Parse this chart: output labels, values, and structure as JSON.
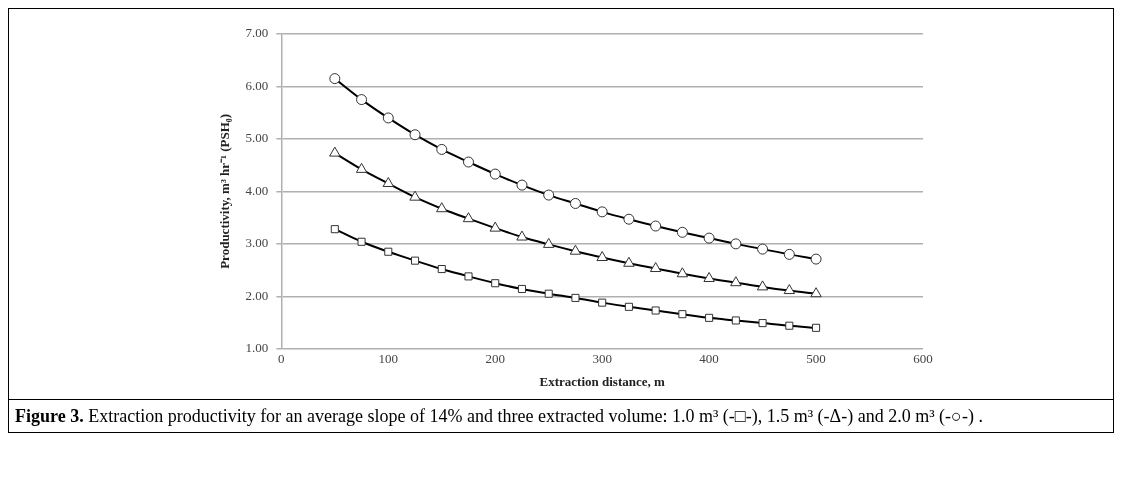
{
  "chart_data": {
    "type": "line",
    "xlabel": "Extraction distance, m",
    "ylabel": "Productivity, m³ hr⁻¹ (PSH₀)",
    "x": [
      50,
      75,
      100,
      125,
      150,
      175,
      200,
      225,
      250,
      275,
      300,
      325,
      350,
      375,
      400,
      425,
      450,
      475,
      500
    ],
    "series": [
      {
        "color": "#000000",
        "marker": "square",
        "values": [
          3.28,
          3.04,
          2.85,
          2.68,
          2.52,
          2.38,
          2.25,
          2.14,
          2.05,
          1.97,
          1.88,
          1.8,
          1.73,
          1.66,
          1.59,
          1.54,
          1.49,
          1.44,
          1.4
        ]
      },
      {
        "color": "#000000",
        "marker": "triangle",
        "values": [
          4.73,
          4.42,
          4.15,
          3.89,
          3.67,
          3.48,
          3.3,
          3.13,
          2.99,
          2.86,
          2.74,
          2.63,
          2.53,
          2.43,
          2.34,
          2.26,
          2.18,
          2.11,
          2.05
        ]
      },
      {
        "color": "#000000",
        "marker": "circle",
        "values": [
          6.15,
          5.75,
          5.4,
          5.08,
          4.8,
          4.56,
          4.33,
          4.12,
          3.93,
          3.77,
          3.61,
          3.47,
          3.34,
          3.22,
          3.11,
          3.0,
          2.9,
          2.8,
          2.71
        ]
      }
    ],
    "xlim": [
      0,
      600
    ],
    "xticks": [
      0,
      100,
      200,
      300,
      400,
      500,
      600
    ],
    "ylim": [
      1,
      7
    ],
    "yticks": [
      {
        "value": 1,
        "label": "1.00"
      },
      {
        "value": 2,
        "label": "2.00"
      },
      {
        "value": 3,
        "label": "3.00"
      },
      {
        "value": 4,
        "label": "4.00"
      },
      {
        "value": 5,
        "label": "5.00"
      },
      {
        "value": 6,
        "label": "6.00"
      },
      {
        "value": 7,
        "label": "7.00"
      }
    ],
    "grid": "y",
    "legend": false,
    "line_style": "solid",
    "annotations": [
      "Figure 3.",
      "Extraction productivity for an average slope of 14% and three extracted volume: 1.0 m³ (-□-), 1.5 m³ (-Δ-) and 2.0 m³ (-○-) ."
    ]
  }
}
